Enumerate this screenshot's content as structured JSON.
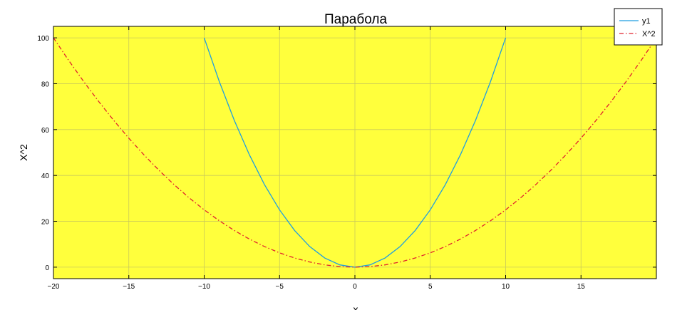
{
  "chart_data": {
    "type": "line",
    "title": "Парабола",
    "xlabel": "x",
    "ylabel": "X^2",
    "xlim": [
      -20,
      20
    ],
    "ylim": [
      -5,
      105
    ],
    "xticks": [
      -20,
      -15,
      -10,
      -5,
      0,
      5,
      10,
      15
    ],
    "xtick_labels": [
      "−20",
      "−15",
      "−10",
      "−5",
      "0",
      "5",
      "10",
      "15"
    ],
    "yticks": [
      0,
      20,
      40,
      60,
      80,
      100
    ],
    "ytick_labels": [
      "0",
      "20",
      "40",
      "60",
      "80",
      "100"
    ],
    "grid": true,
    "background": "#ffff3c",
    "legend_position": "top-right",
    "series": [
      {
        "name": "y1",
        "color": "#1f9ee0",
        "style": "solid",
        "x": [
          -10,
          -9,
          -8,
          -7,
          -6,
          -5,
          -4,
          -3,
          -2,
          -1,
          0,
          1,
          2,
          3,
          4,
          5,
          6,
          7,
          8,
          9,
          10
        ],
        "y": [
          100,
          81,
          64,
          49,
          36,
          25,
          16,
          9,
          4,
          1,
          0,
          1,
          4,
          9,
          16,
          25,
          36,
          49,
          64,
          81,
          100
        ]
      },
      {
        "name": "X^2",
        "color": "#e0232d",
        "style": "dashdot",
        "x": [
          -20,
          -19,
          -18,
          -17,
          -16,
          -15,
          -14,
          -13,
          -12,
          -11,
          -10,
          -9,
          -8,
          -7,
          -6,
          -5,
          -4,
          -3,
          -2,
          -1,
          0,
          1,
          2,
          3,
          4,
          5,
          6,
          7,
          8,
          9,
          10,
          11,
          12,
          13,
          14,
          15,
          16,
          17,
          18,
          19,
          20
        ],
        "y": [
          100,
          90.25,
          81,
          72.25,
          64,
          56.25,
          49,
          42.25,
          36,
          30.25,
          25,
          20.25,
          16,
          12.25,
          9,
          6.25,
          4,
          2.25,
          1,
          0.25,
          0,
          0.25,
          1,
          2.25,
          4,
          6.25,
          9,
          12.25,
          16,
          20.25,
          25,
          30.25,
          36,
          42.25,
          49,
          56.25,
          64,
          72.25,
          81,
          90.25,
          100
        ]
      }
    ]
  }
}
